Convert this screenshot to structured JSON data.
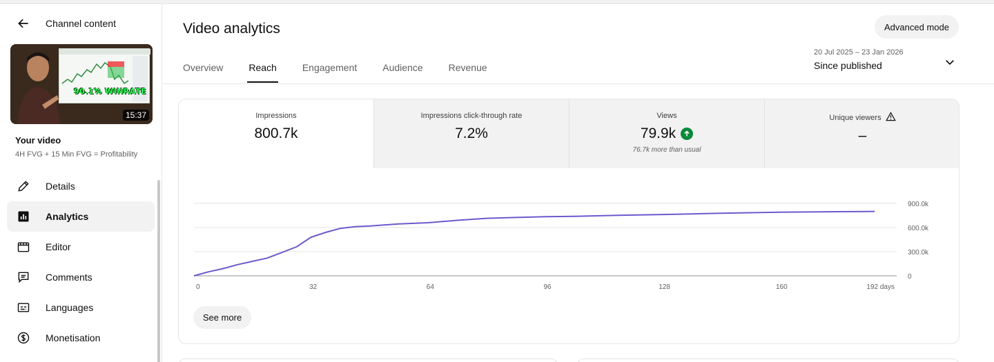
{
  "sidebar": {
    "title": "Channel content",
    "video": {
      "duration": "15:37",
      "overlay_text": "90.1% WINRATE",
      "heading": "Your video",
      "subtitle": "4H FVG + 15 Min FVG = Profitability"
    },
    "items": [
      {
        "label": "Details",
        "icon": "pencil-icon"
      },
      {
        "label": "Analytics",
        "icon": "analytics-icon",
        "active": true
      },
      {
        "label": "Editor",
        "icon": "clapperboard-icon"
      },
      {
        "label": "Comments",
        "icon": "comment-icon"
      },
      {
        "label": "Languages",
        "icon": "subtitles-icon"
      },
      {
        "label": "Monetisation",
        "icon": "dollar-icon"
      }
    ]
  },
  "header": {
    "title": "Video analytics",
    "advanced_mode_label": "Advanced mode",
    "tabs": [
      {
        "label": "Overview"
      },
      {
        "label": "Reach",
        "active": true
      },
      {
        "label": "Engagement"
      },
      {
        "label": "Audience"
      },
      {
        "label": "Revenue"
      }
    ],
    "date_range": "20 Jul 2025 – 23 Jan 2026",
    "date_label": "Since published"
  },
  "metrics": [
    {
      "label": "Impressions",
      "value": "800.7k"
    },
    {
      "label": "Impressions click-through rate",
      "value": "7.2%"
    },
    {
      "label": "Views",
      "value": "79.9k",
      "note": "76.7k more than usual"
    },
    {
      "label": "Unique viewers",
      "value": "–"
    }
  ],
  "chart_data": {
    "type": "line",
    "series": [
      {
        "color": "#6a5acd",
        "x": [
          0,
          4,
          8,
          12,
          16,
          20,
          24,
          28,
          32,
          36,
          40,
          44,
          48,
          56,
          64,
          72,
          80,
          88,
          96,
          104,
          112,
          120,
          128,
          136,
          144,
          152,
          160,
          168,
          176,
          184,
          186
        ],
        "y": [
          0,
          50000,
          90000,
          140000,
          180000,
          220000,
          290000,
          360000,
          480000,
          540000,
          590000,
          610000,
          620000,
          645000,
          660000,
          690000,
          715000,
          725000,
          735000,
          740000,
          748000,
          755000,
          762000,
          770000,
          778000,
          784000,
          790000,
          794000,
          797000,
          800000,
          800700
        ]
      }
    ],
    "x_ticks": [
      "0",
      "32",
      "64",
      "96",
      "128",
      "160",
      "192 days"
    ],
    "y_ticks": [
      "0",
      "300.0k",
      "600.0k",
      "900.0k"
    ],
    "xlim": [
      0,
      192
    ],
    "ylim": [
      0,
      900000
    ],
    "grid": true
  },
  "see_more_label": "See more",
  "colors": {
    "accent_line": "#6a5acd",
    "up_badge": "#0b8a3a"
  }
}
